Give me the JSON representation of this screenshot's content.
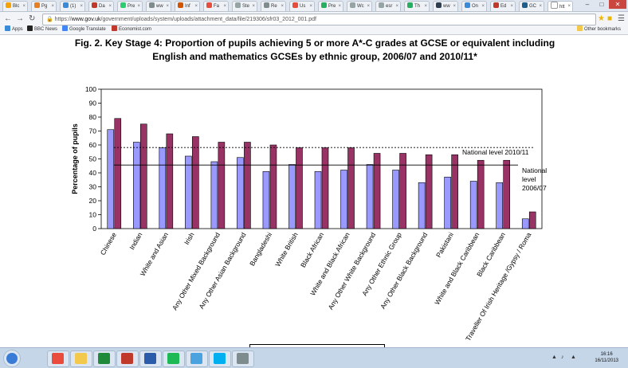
{
  "browser": {
    "tabs": [
      {
        "label": "Blc",
        "color": "#f4a300"
      },
      {
        "label": "Pg",
        "color": "#e67e22"
      },
      {
        "label": "(1)",
        "color": "#3b8ad8"
      },
      {
        "label": "Da",
        "color": "#c0392b"
      },
      {
        "label": "Pre",
        "color": "#2ecc71"
      },
      {
        "label": "ww",
        "color": "#7f8c8d"
      },
      {
        "label": "Inf",
        "color": "#d35400"
      },
      {
        "label": "Fa",
        "color": "#e74c3c"
      },
      {
        "label": "Ste",
        "color": "#95a5a6"
      },
      {
        "label": "Re",
        "color": "#7f8c8d"
      },
      {
        "label": "Us",
        "color": "#e74c3c"
      },
      {
        "label": "Pre",
        "color": "#27ae60"
      },
      {
        "label": "Wc",
        "color": "#95a5a6"
      },
      {
        "label": "esr",
        "color": "#95a5a6"
      },
      {
        "label": "Th",
        "color": "#27ae60"
      },
      {
        "label": "ww",
        "color": "#2c3e50"
      },
      {
        "label": "On",
        "color": "#3b8ad8"
      },
      {
        "label": "Ed",
        "color": "#c0392b"
      },
      {
        "label": "GC",
        "color": "#1f5f8b"
      },
      {
        "label": "htt",
        "color": "#ffffff"
      }
    ],
    "url_prefix": "https://",
    "url_host": "www.gov.uk",
    "url_path": "/government/uploads/system/uploads/attachment_data/file/219306/sfr03_2012_001.pdf",
    "bookmarks": [
      {
        "label": "Apps",
        "color": "#3b8ad8"
      },
      {
        "label": "BBC News",
        "color": "#222222"
      },
      {
        "label": "Google Translate",
        "color": "#4285f4"
      },
      {
        "label": "Economist.com",
        "color": "#c0392b"
      }
    ],
    "other_bookmarks": "Other bookmarks"
  },
  "colors": {
    "series_2006_07": "#9999ff",
    "series_2010_11": "#993366"
  },
  "chart_data": {
    "type": "bar",
    "title": "Fig. 2. Key Stage 4: Proportion of pupils achieving 5 or more A*-C grades at GCSE or equivalent including English and mathematics GCSEs by ethnic group, 2006/07 and 2010/11*",
    "ylabel": "Percentage of pupils",
    "xlabel": "",
    "ylim": [
      0,
      100
    ],
    "yticks": [
      "0",
      "10",
      "20",
      "30",
      "40",
      "50",
      "60",
      "70",
      "80",
      "90",
      "100"
    ],
    "grid": false,
    "categories": [
      "Chinese",
      "Indian",
      "White and Asian",
      "Irish",
      "Any Other Mixed Background",
      "Any Other Asian Background",
      "Bangladeshi",
      "White British",
      "Black African",
      "White and Black African",
      "Any Other White Background",
      "Any Other Ethnic Group",
      "Any Other Black Background",
      "Pakistani",
      "White and Black Caribbean",
      "Black Caribbean",
      "Traveller Of Irish Heritage /Gypsy / Roma"
    ],
    "series": [
      {
        "key": "2006_07",
        "values": [
          71,
          62,
          58,
          52,
          48,
          51,
          41,
          46,
          41,
          42,
          46,
          42,
          33,
          37,
          34,
          33,
          7
        ]
      },
      {
        "key": "2010_11",
        "values": [
          79,
          75,
          68,
          66,
          62,
          62,
          60,
          58,
          58,
          58,
          54,
          54,
          53,
          53,
          49,
          49,
          12
        ]
      }
    ],
    "reference_lines": [
      {
        "label": "National level 2010/11",
        "value": 58.2,
        "style": "dashed"
      },
      {
        "label_lines": [
          "National",
          "level",
          "2006/07"
        ],
        "value": 45.6,
        "style": "solid"
      }
    ]
  },
  "taskbar": {
    "clock_time": "16:16",
    "clock_date": "16/11/2013",
    "apps": [
      {
        "name": "start",
        "color": "#3a7bd5"
      },
      {
        "name": "chrome",
        "color": "#e94b3c"
      },
      {
        "name": "explorer",
        "color": "#f2c94c"
      },
      {
        "name": "excel",
        "color": "#1e8a3a"
      },
      {
        "name": "acrobat",
        "color": "#c0392b"
      },
      {
        "name": "word",
        "color": "#2a5caa"
      },
      {
        "name": "spotify",
        "color": "#1db954"
      },
      {
        "name": "paint",
        "color": "#4aa3df"
      },
      {
        "name": "skype",
        "color": "#00aff0"
      },
      {
        "name": "network",
        "color": "#7f8c8d"
      }
    ]
  }
}
